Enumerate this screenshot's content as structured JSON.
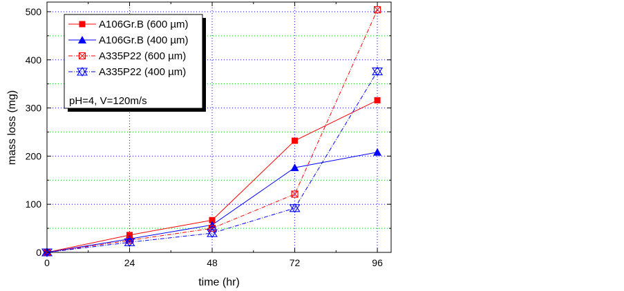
{
  "chart_data": {
    "type": "line",
    "xlabel": "time (hr)",
    "ylabel": "mass loss (mg)",
    "xlim": [
      0,
      100
    ],
    "ylim": [
      0,
      520
    ],
    "xticks": [
      0,
      24,
      48,
      72,
      96
    ],
    "yticks": [
      0,
      100,
      200,
      300,
      400,
      500
    ],
    "ygrid_minor": [
      50,
      150,
      250,
      350,
      450
    ],
    "series": [
      {
        "name": "A106Gr.B (600 µm)",
        "color": "#ff0000",
        "marker": "filled-square",
        "dash": "solid",
        "x": [
          0,
          24,
          48,
          72,
          96
        ],
        "y": [
          0,
          36,
          67,
          232,
          316
        ]
      },
      {
        "name": "A106Gr.B (400 µm)",
        "color": "#0000ff",
        "marker": "filled-triangle",
        "dash": "solid",
        "x": [
          0,
          24,
          48,
          72,
          96
        ],
        "y": [
          0,
          28,
          57,
          176,
          208
        ]
      },
      {
        "name": "A335P22 (600 µm)",
        "color": "#ff0000",
        "marker": "crossed-square",
        "dash": "dash-dot",
        "x": [
          0,
          24,
          48,
          72,
          96
        ],
        "y": [
          0,
          25,
          50,
          121,
          504
        ]
      },
      {
        "name": "A335P22 (400 µm)",
        "color": "#0000ff",
        "marker": "crossed-triangle",
        "dash": "dash-dot",
        "x": [
          0,
          24,
          48,
          72,
          96
        ],
        "y": [
          0,
          21,
          40,
          92,
          376
        ]
      }
    ],
    "annotation": "pH=4, V=120m/s"
  }
}
